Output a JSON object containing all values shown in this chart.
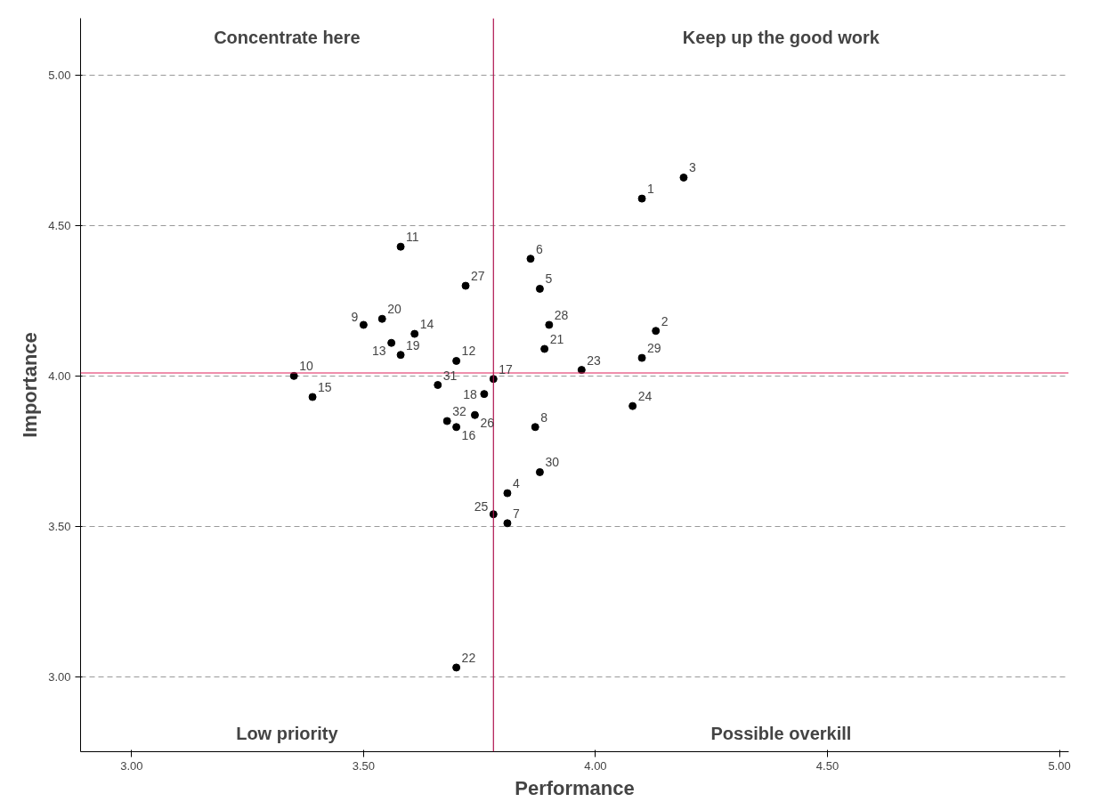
{
  "chart_data": {
    "type": "scatter",
    "xlabel": "Performance",
    "ylabel": "Importance",
    "x": [
      4.1,
      4.13,
      4.19,
      3.81,
      3.88,
      3.86,
      3.81,
      3.87,
      3.5,
      3.35,
      3.58,
      3.7,
      3.56,
      3.61,
      3.39,
      3.7,
      3.78,
      3.76,
      3.58,
      3.54,
      3.89,
      3.7,
      3.97,
      4.08,
      3.78,
      3.74,
      3.72,
      3.9,
      4.1,
      3.88,
      3.66,
      3.68
    ],
    "series": [
      {
        "color": "#000000",
        "values": [
          4.59,
          4.15,
          4.66,
          3.61,
          4.29,
          4.39,
          3.51,
          3.83,
          4.17,
          4.0,
          4.43,
          4.05,
          4.11,
          4.14,
          3.93,
          3.83,
          3.99,
          3.94,
          4.07,
          4.19,
          4.09,
          3.03,
          4.02,
          3.9,
          3.54,
          3.87,
          4.3,
          4.17,
          4.06,
          3.68,
          3.97,
          3.85
        ]
      }
    ],
    "marker": "circle",
    "grid": "y",
    "xlim": [
      2.89,
      5.02
    ],
    "ylim": [
      2.75,
      5.19
    ],
    "xticks": [
      {
        "value": 3,
        "label": "3.00"
      },
      {
        "value": 3.5,
        "label": "3.50"
      },
      {
        "value": 4,
        "label": "4.00"
      },
      {
        "value": 4.5,
        "label": "4.50"
      },
      {
        "value": 5,
        "label": "5.00"
      }
    ],
    "yticks": [
      {
        "value": 3,
        "label": "3.00"
      },
      {
        "value": 3.5,
        "label": "3.50"
      },
      {
        "value": 4,
        "label": "4.00"
      },
      {
        "value": 4.5,
        "label": "4.50"
      },
      {
        "value": 5,
        "label": "5.00"
      }
    ],
    "ref_lines": [
      {
        "axis": "x",
        "value": 3.78,
        "color": "#b0154f"
      },
      {
        "axis": "y",
        "value": 4.01,
        "color": "#e0205a"
      }
    ],
    "annotations": [
      "Concentrate here",
      "Keep up the good work",
      "Low priority",
      "Possible overkill",
      {
        "text": "1",
        "x": 4.1,
        "y": 4.59
      },
      {
        "text": "2",
        "x": 4.13,
        "y": 4.15
      },
      {
        "text": "3",
        "x": 4.19,
        "y": 4.66
      },
      {
        "text": "4",
        "x": 3.81,
        "y": 3.61
      },
      {
        "text": "5",
        "x": 3.88,
        "y": 4.29
      },
      {
        "text": "6",
        "x": 3.86,
        "y": 4.39
      },
      {
        "text": "7",
        "x": 3.81,
        "y": 3.51
      },
      {
        "text": "8",
        "x": 3.87,
        "y": 3.83
      },
      {
        "text": "9",
        "x": 3.5,
        "y": 4.17
      },
      {
        "text": "10",
        "x": 3.35,
        "y": 4.0
      },
      {
        "text": "11",
        "x": 3.58,
        "y": 4.43
      },
      {
        "text": "12",
        "x": 3.7,
        "y": 4.05
      },
      {
        "text": "13",
        "x": 3.56,
        "y": 4.11
      },
      {
        "text": "14",
        "x": 3.61,
        "y": 4.14
      },
      {
        "text": "15",
        "x": 3.39,
        "y": 3.93
      },
      {
        "text": "16",
        "x": 3.7,
        "y": 3.83
      },
      {
        "text": "17",
        "x": 3.78,
        "y": 3.99
      },
      {
        "text": "18",
        "x": 3.76,
        "y": 3.94
      },
      {
        "text": "19",
        "x": 3.58,
        "y": 4.07
      },
      {
        "text": "20",
        "x": 3.54,
        "y": 4.19
      },
      {
        "text": "21",
        "x": 3.89,
        "y": 4.09
      },
      {
        "text": "22",
        "x": 3.7,
        "y": 3.03
      },
      {
        "text": "23",
        "x": 3.97,
        "y": 4.02
      },
      {
        "text": "24",
        "x": 4.08,
        "y": 3.9
      },
      {
        "text": "25",
        "x": 3.78,
        "y": 3.54
      },
      {
        "text": "26",
        "x": 3.74,
        "y": 3.87
      },
      {
        "text": "27",
        "x": 3.72,
        "y": 4.3
      },
      {
        "text": "28",
        "x": 3.9,
        "y": 4.17
      },
      {
        "text": "29",
        "x": 4.1,
        "y": 4.06
      },
      {
        "text": "30",
        "x": 3.88,
        "y": 3.68
      },
      {
        "text": "31",
        "x": 3.66,
        "y": 3.97
      },
      {
        "text": "32",
        "x": 3.68,
        "y": 3.85
      }
    ]
  }
}
